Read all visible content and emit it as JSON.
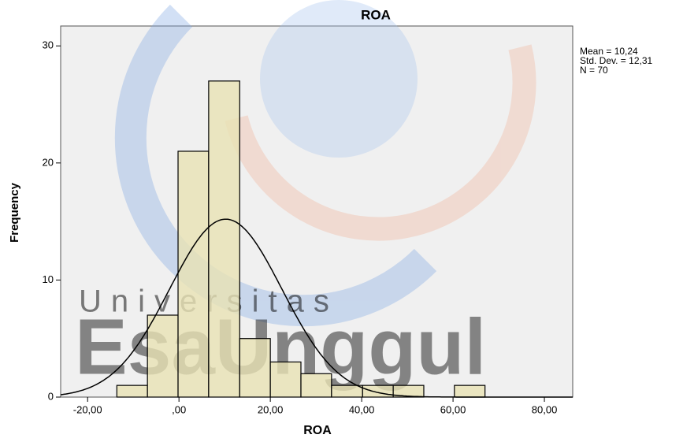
{
  "chart_data": {
    "type": "histogram",
    "title": "ROA",
    "x_label": "ROA",
    "y_label": "Frequency",
    "bins": [
      -13.6,
      -6.9,
      -0.2,
      6.5,
      13.3,
      20.0,
      26.7,
      33.4,
      40.2,
      46.9,
      53.6,
      60.3,
      67.0
    ],
    "counts": [
      1,
      7,
      21,
      27,
      5,
      3,
      2,
      1,
      1,
      1,
      0,
      1
    ],
    "color": "#e8e2b4",
    "xlim": [
      -25.9,
      86.2
    ],
    "xticks": [
      {
        "value": -20,
        "label": "-20,00"
      },
      {
        "value": 0,
        "label": ",00"
      },
      {
        "value": 20,
        "label": "20,00"
      },
      {
        "value": 40,
        "label": "40,00"
      },
      {
        "value": 60,
        "label": "60,00"
      },
      {
        "value": 80,
        "label": "80,00"
      }
    ],
    "ylim": [
      0,
      31.7
    ],
    "yticks": [
      0,
      10,
      20,
      30
    ],
    "stats": [
      {
        "value": 10.24,
        "label": "Mean = 10,24"
      },
      {
        "value": 12.31,
        "label": "Std. Dev. = 12,31"
      },
      {
        "value": 70,
        "label": "N = 70"
      }
    ],
    "watermark": [
      "Universitas",
      "EsaUnggul"
    ]
  }
}
